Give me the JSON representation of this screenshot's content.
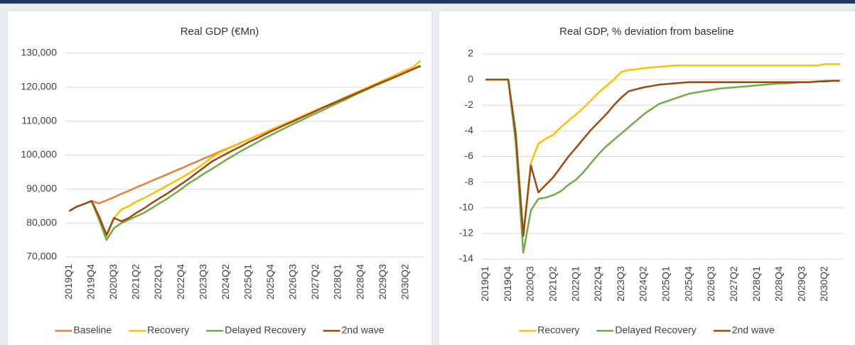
{
  "chart_data": [
    {
      "type": "line",
      "title": "Real GDP (€Mn)",
      "categories": [
        "2019Q1",
        null,
        null,
        "2019Q4",
        null,
        null,
        "2020Q3",
        null,
        null,
        "2021Q2",
        null,
        null,
        "2022Q1",
        null,
        null,
        "2022Q4",
        null,
        null,
        "2023Q3",
        null,
        null,
        "2024Q2",
        null,
        null,
        "2025Q1",
        null,
        null,
        "2025Q4",
        null,
        null,
        "2026Q3",
        null,
        null,
        "2027Q2",
        null,
        null,
        "2028Q1",
        null,
        null,
        "2028Q4",
        null,
        null,
        "2029Q3",
        null,
        null,
        "2030Q2",
        null,
        null
      ],
      "ylim": [
        70000,
        130000
      ],
      "yticks": [
        {
          "value": 70000,
          "label": "70,000"
        },
        {
          "value": 80000,
          "label": "80,000"
        },
        {
          "value": 90000,
          "label": "90,000"
        },
        {
          "value": 100000,
          "label": "100,000"
        },
        {
          "value": 110000,
          "label": "110,000"
        },
        {
          "value": 120000,
          "label": "120,000"
        },
        {
          "value": 130000,
          "label": "130,000"
        }
      ],
      "grid": true,
      "series": [
        {
          "name": "Baseline",
          "color": "#ed7d31",
          "values": [
            83500,
            84800,
            85600,
            86500,
            85800,
            86700,
            87600,
            88600,
            89500,
            90500,
            91400,
            92400,
            93300,
            94200,
            95200,
            96100,
            97100,
            98000,
            99000,
            99900,
            100900,
            101800,
            102700,
            103700,
            104600,
            105600,
            106500,
            107500,
            108400,
            109300,
            110300,
            111200,
            112200,
            113100,
            114100,
            115000,
            115900,
            116900,
            117800,
            118800,
            119700,
            120700,
            121600,
            122500,
            123500,
            124400,
            125400,
            126300
          ]
        },
        {
          "name": "Recovery",
          "color": "#ffc000",
          "values": [
            83500,
            84800,
            85600,
            86500,
            82000,
            76000,
            81500,
            84000,
            85000,
            86300,
            87300,
            88500,
            89700,
            90900,
            92100,
            93300,
            94600,
            96000,
            97500,
            99200,
            100600,
            101600,
            102600,
            103600,
            104600,
            105600,
            106500,
            107500,
            108400,
            109400,
            110300,
            111300,
            112300,
            113200,
            114200,
            115100,
            116100,
            117100,
            118100,
            119000,
            120000,
            121000,
            122000,
            123000,
            124000,
            125000,
            125900,
            127800
          ]
        },
        {
          "name": "Delayed Recovery",
          "color": "#70ad47",
          "values": [
            83500,
            84800,
            85600,
            86500,
            81000,
            75000,
            78500,
            80000,
            81000,
            82000,
            83000,
            84300,
            85700,
            87000,
            88500,
            90000,
            91700,
            93000,
            94500,
            95800,
            97200,
            98600,
            99900,
            101200,
            102400,
            103600,
            104800,
            105900,
            107000,
            108100,
            109200,
            110200,
            111300,
            112300,
            113300,
            114400,
            115400,
            116400,
            117500,
            118500,
            119500,
            120500,
            121500,
            122400,
            123400,
            124300,
            125300,
            126200
          ]
        },
        {
          "name": "2nd wave",
          "color": "#9e480e",
          "values": [
            83500,
            84800,
            85600,
            86500,
            82000,
            76500,
            81500,
            80500,
            81500,
            83000,
            84300,
            85800,
            87200,
            88500,
            90000,
            91500,
            93000,
            94700,
            96300,
            98000,
            99200,
            100400,
            101500,
            102600,
            103800,
            104800,
            105900,
            107000,
            108000,
            109000,
            110000,
            111000,
            112000,
            113000,
            114000,
            115000,
            115900,
            116900,
            117800,
            118800,
            119700,
            120700,
            121600,
            122500,
            123400,
            124400,
            125300,
            126300
          ]
        }
      ]
    },
    {
      "type": "line",
      "title": "Real GDP, % deviation from baseline",
      "categories": [
        "2019Q1",
        null,
        null,
        "2019Q4",
        null,
        null,
        "2020Q3",
        null,
        null,
        "2021Q2",
        null,
        null,
        "2022Q1",
        null,
        null,
        "2022Q4",
        null,
        null,
        "2023Q3",
        null,
        null,
        "2024Q2",
        null,
        null,
        "2025Q1",
        null,
        null,
        "2025Q4",
        null,
        null,
        "2026Q3",
        null,
        null,
        "2027Q2",
        null,
        null,
        "2028Q1",
        null,
        null,
        "2028Q4",
        null,
        null,
        "2029Q3",
        null,
        null,
        "2030Q2",
        null,
        null
      ],
      "ylim": [
        -14,
        2
      ],
      "yticks": [
        -14,
        -12,
        -10,
        -8,
        -6,
        -4,
        -2,
        0,
        2
      ],
      "grid": true,
      "series": [
        {
          "name": "Recovery",
          "color": "#ffc000",
          "values": [
            0,
            0,
            0,
            0,
            -4.5,
            -12.0,
            -6.5,
            -5.0,
            -4.6,
            -4.3,
            -3.7,
            -3.2,
            -2.7,
            -2.2,
            -1.6,
            -1.0,
            -0.5,
            0.0,
            0.6,
            0.75,
            0.8,
            0.9,
            0.95,
            1.0,
            1.05,
            1.1,
            1.1,
            1.1,
            1.1,
            1.1,
            1.1,
            1.1,
            1.1,
            1.1,
            1.1,
            1.1,
            1.1,
            1.1,
            1.1,
            1.1,
            1.1,
            1.1,
            1.1,
            1.1,
            1.1,
            1.2,
            1.2,
            1.2
          ]
        },
        {
          "name": "Delayed Recovery",
          "color": "#70ad47",
          "values": [
            0,
            0,
            0,
            0,
            -5.0,
            -13.5,
            -10.2,
            -9.3,
            -9.2,
            -9.0,
            -8.7,
            -8.2,
            -7.8,
            -7.2,
            -6.5,
            -5.8,
            -5.2,
            -4.7,
            -4.2,
            -3.7,
            -3.2,
            -2.7,
            -2.3,
            -1.9,
            -1.7,
            -1.5,
            -1.3,
            -1.1,
            -1.0,
            -0.9,
            -0.8,
            -0.7,
            -0.65,
            -0.6,
            -0.55,
            -0.5,
            -0.45,
            -0.4,
            -0.35,
            -0.3,
            -0.3,
            -0.25,
            -0.2,
            -0.2,
            -0.15,
            -0.1,
            -0.1,
            -0.1
          ]
        },
        {
          "name": "2nd wave",
          "color": "#9e480e",
          "values": [
            0,
            0,
            0,
            0,
            -4.2,
            -12.2,
            -6.7,
            -8.8,
            -8.2,
            -7.6,
            -6.8,
            -6.0,
            -5.3,
            -4.6,
            -3.9,
            -3.3,
            -2.7,
            -2.0,
            -1.4,
            -0.9,
            -0.75,
            -0.6,
            -0.5,
            -0.4,
            -0.35,
            -0.3,
            -0.25,
            -0.2,
            -0.2,
            -0.2,
            -0.2,
            -0.2,
            -0.2,
            -0.2,
            -0.2,
            -0.2,
            -0.2,
            -0.2,
            -0.2,
            -0.2,
            -0.2,
            -0.2,
            -0.2,
            -0.2,
            -0.15,
            -0.15,
            -0.1,
            -0.1
          ]
        }
      ]
    }
  ]
}
